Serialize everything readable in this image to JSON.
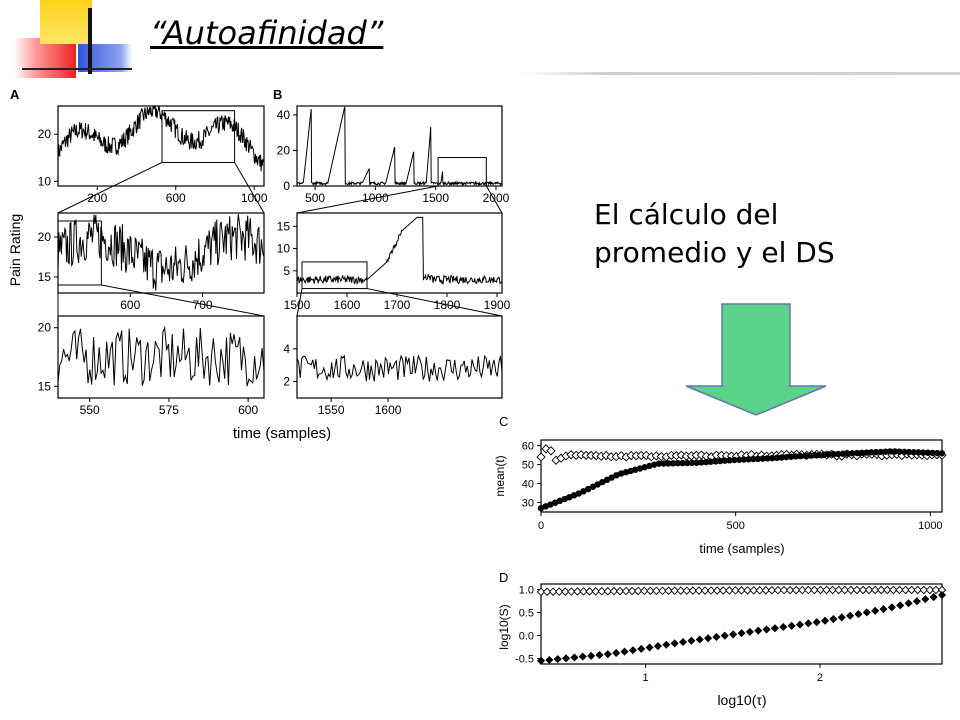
{
  "slide": {
    "title": "“Autoafinidad”",
    "callout": [
      "El cálculo del",
      "promedio y el DS"
    ],
    "colors": {
      "arrow_fill": "#5bd38a",
      "arrow_stroke": "#6677aa",
      "deco_red": "#ee2222",
      "deco_yellow": "#ffd21a",
      "deco_blue": "#3355dd"
    }
  },
  "chart_data": [
    {
      "id": "A",
      "type": "line",
      "panel_label": "A",
      "ylabel": "Pain Rating",
      "xlabel": "time (samples)",
      "rows": [
        {
          "xlim": [
            0,
            1050
          ],
          "ylim": [
            9,
            26
          ],
          "yticks": [
            10,
            20
          ],
          "xticks": [
            200,
            600,
            1000
          ],
          "inset_box": {
            "x": [
              530,
              900
            ],
            "y": [
              14,
              25
            ]
          }
        },
        {
          "xlim": [
            500,
            785
          ],
          "ylim": [
            13,
            23
          ],
          "yticks": [
            15,
            20
          ],
          "xticks": [
            600,
            700
          ],
          "inset_box": {
            "x": [
              500,
              560
            ],
            "y": [
              14,
              22
            ]
          }
        },
        {
          "xlim": [
            540,
            605
          ],
          "ylim": [
            14,
            21
          ],
          "yticks": [
            15,
            20
          ],
          "xticks": [
            550,
            575,
            600
          ]
        }
      ]
    },
    {
      "id": "B",
      "type": "line",
      "panel_label": "B",
      "rows": [
        {
          "xlim": [
            350,
            2050
          ],
          "ylim": [
            0,
            45
          ],
          "yticks": [
            0,
            20,
            40
          ],
          "xticks": [
            500,
            1000,
            1500,
            2000
          ],
          "inset_box": {
            "x": [
              1520,
              1920
            ],
            "y": [
              0,
              16
            ]
          }
        },
        {
          "xlim": [
            1500,
            1910
          ],
          "ylim": [
            0,
            18
          ],
          "yticks": [
            5,
            10,
            15
          ],
          "xticks": [
            1500,
            1600,
            1700,
            1800,
            1900
          ],
          "inset_box": {
            "x": [
              1510,
              1640
            ],
            "y": [
              1,
              7
            ]
          }
        },
        {
          "xlim": [
            1520,
            1700
          ],
          "ylim": [
            1,
            6
          ],
          "yticks": [
            2,
            4
          ],
          "xticks": [
            1550,
            1600
          ]
        }
      ]
    },
    {
      "id": "C",
      "type": "scatter",
      "panel_label": "C",
      "xlabel": "time (samples)",
      "ylabel": "mean(t)",
      "xlim": [
        0,
        1030
      ],
      "ylim": [
        25,
        63
      ],
      "xticks": [
        0,
        500,
        1000
      ],
      "yticks": [
        30,
        40,
        50,
        60
      ],
      "series": [
        {
          "marker": "open-diamond",
          "x": [
            0,
            200,
            400,
            600,
            800,
            1030
          ],
          "y": [
            55,
            54.5,
            54.5,
            55,
            55,
            55
          ]
        },
        {
          "marker": "filled-circle",
          "x": [
            0,
            100,
            200,
            300,
            400,
            500,
            600,
            700,
            800,
            900,
            1030
          ],
          "y": [
            27,
            35,
            45,
            50.5,
            51,
            52.5,
            53.5,
            55,
            56,
            57,
            56
          ]
        }
      ]
    },
    {
      "id": "D",
      "type": "scatter",
      "panel_label": "D",
      "xlabel": "log10(τ)",
      "ylabel": "log10(S)",
      "xlim": [
        0.4,
        2.7
      ],
      "ylim": [
        -0.62,
        1.12
      ],
      "xticks": [
        1,
        2
      ],
      "yticks": [
        -0.5,
        0.0,
        0.5,
        1.0
      ],
      "yticklabels": [
        "-0.5",
        "0.0",
        "0.5",
        "1.0"
      ],
      "series": [
        {
          "marker": "open-diamond",
          "x": [
            0.4,
            1.0,
            1.5,
            2.0,
            2.7
          ],
          "y": [
            0.95,
            0.97,
            0.98,
            0.99,
            0.99
          ]
        },
        {
          "marker": "filled-diamond",
          "x": [
            0.4,
            0.8,
            1.2,
            1.6,
            2.0,
            2.4,
            2.7
          ],
          "y": [
            -0.55,
            -0.4,
            -0.15,
            0.08,
            0.3,
            0.6,
            0.88
          ]
        }
      ]
    }
  ]
}
